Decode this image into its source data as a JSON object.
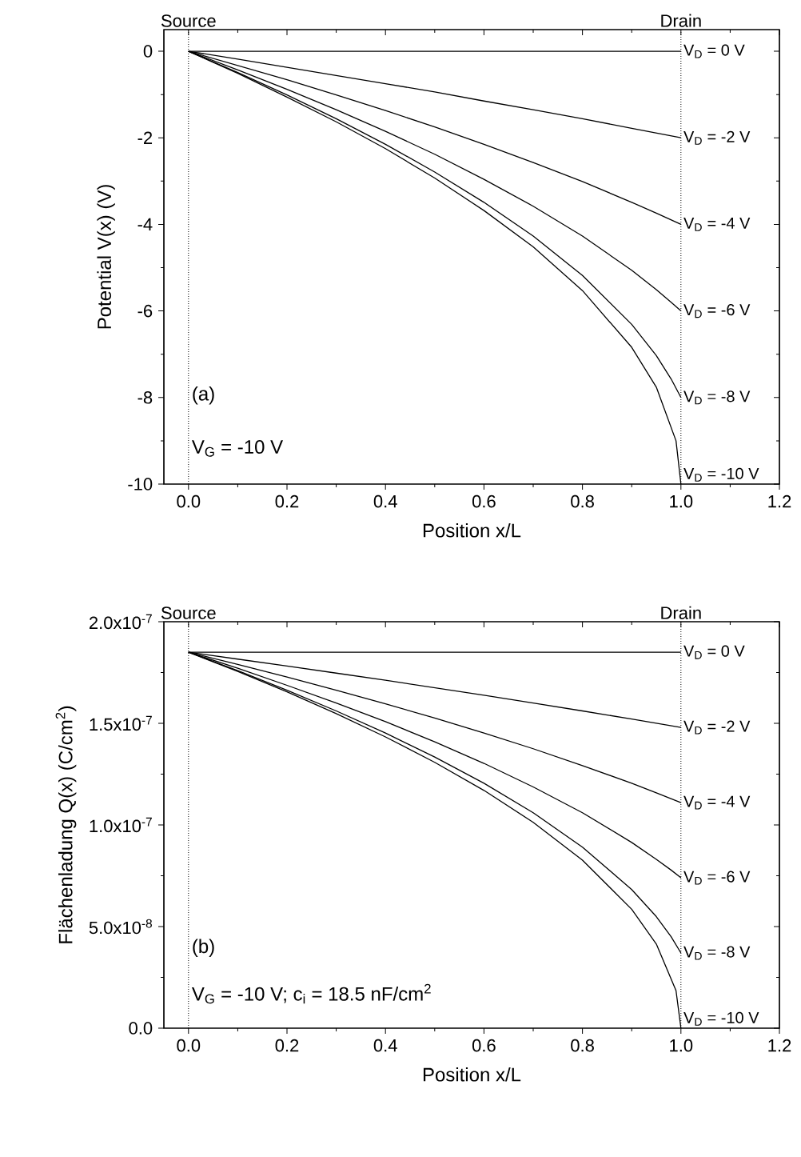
{
  "chart_data": [
    {
      "type": "line",
      "xlabel": "Position x/L",
      "ylabel": "Potential V(x) (V)",
      "xlim": [
        -0.05,
        1.2
      ],
      "ylim": [
        -10,
        0.5
      ],
      "xticks": [
        {
          "value": 0,
          "label": "0.0"
        },
        {
          "value": 0.2,
          "label": "0.2"
        },
        {
          "value": 0.4,
          "label": "0.4"
        },
        {
          "value": 0.6,
          "label": "0.6"
        },
        {
          "value": 0.8,
          "label": "0.8"
        },
        {
          "value": 1,
          "label": "1.0"
        },
        {
          "value": 1.2,
          "label": "1.2"
        }
      ],
      "yticks": [
        -10,
        -8,
        -6,
        -4,
        -2,
        0
      ],
      "grid": false,
      "legend": "right",
      "line_style": "solid",
      "marker": "none",
      "ref_lines": [
        {
          "axis": "x",
          "value": 0,
          "label": "Source",
          "line_style": "dotted",
          "color": "#000000"
        },
        {
          "axis": "x",
          "value": 1,
          "label": "Drain",
          "line_style": "dotted",
          "color": "#000000"
        }
      ],
      "annotations": [
        "(a)",
        "V$_{G}$ = -10 V"
      ],
      "series": [
        {
          "name": "V$_{D}$ = 0 V",
          "color": "#000000",
          "x": [
            0,
            1
          ],
          "values": [
            0,
            0
          ]
        },
        {
          "name": "V$_{D}$ = -2 V",
          "color": "#000000",
          "x": [
            0,
            0.1,
            0.2,
            0.3,
            0.4,
            0.5,
            0.6,
            0.7,
            0.8,
            0.9,
            1
          ],
          "values": [
            0,
            -0.18,
            -0.37,
            -0.56,
            -0.75,
            -0.94,
            -1.15,
            -1.35,
            -1.56,
            -1.78,
            -2
          ]
        },
        {
          "name": "V$_{D}$ = -4 V",
          "color": "#000000",
          "x": [
            0,
            0.1,
            0.2,
            0.3,
            0.4,
            0.5,
            0.6,
            0.7,
            0.8,
            0.9,
            0.95,
            1
          ],
          "values": [
            0,
            -0.33,
            -0.66,
            -1.01,
            -1.37,
            -1.75,
            -2.15,
            -2.57,
            -3.01,
            -3.49,
            -3.74,
            -4
          ]
        },
        {
          "name": "V$_{D}$ = -6 V",
          "color": "#000000",
          "x": [
            0,
            0.1,
            0.2,
            0.3,
            0.4,
            0.5,
            0.6,
            0.7,
            0.8,
            0.9,
            0.95,
            0.98,
            1
          ],
          "values": [
            0,
            -0.43,
            -0.88,
            -1.35,
            -1.85,
            -2.38,
            -2.96,
            -3.58,
            -4.27,
            -5.06,
            -5.51,
            -5.8,
            -6
          ]
        },
        {
          "name": "V$_{D}$ = -8 V",
          "color": "#000000",
          "x": [
            0,
            0.1,
            0.2,
            0.3,
            0.4,
            0.5,
            0.6,
            0.7,
            0.8,
            0.9,
            0.95,
            0.98,
            1
          ],
          "values": [
            0,
            -0.49,
            -1.01,
            -1.56,
            -2.15,
            -2.79,
            -3.49,
            -4.27,
            -5.18,
            -6.31,
            -7.03,
            -7.57,
            -8
          ]
        },
        {
          "name": "V$_{D}$ = -10 V",
          "color": "#000000",
          "x": [
            0,
            0.1,
            0.2,
            0.3,
            0.4,
            0.5,
            0.6,
            0.7,
            0.8,
            0.9,
            0.95,
            0.99,
            1
          ],
          "values": [
            0,
            -0.51,
            -1.06,
            -1.63,
            -2.25,
            -2.93,
            -3.68,
            -4.52,
            -5.53,
            -6.84,
            -7.76,
            -9,
            -10
          ]
        }
      ]
    },
    {
      "type": "line",
      "xlabel": "Position x/L",
      "ylabel": "Flächenladung Q(x) (C/cm$^{2}$)",
      "xlim": [
        -0.05,
        1.2
      ],
      "ylim": [
        0,
        2e-07
      ],
      "xticks": [
        {
          "value": 0,
          "label": "0.0"
        },
        {
          "value": 0.2,
          "label": "0.2"
        },
        {
          "value": 0.4,
          "label": "0.4"
        },
        {
          "value": 0.6,
          "label": "0.6"
        },
        {
          "value": 0.8,
          "label": "0.8"
        },
        {
          "value": 1,
          "label": "1.0"
        },
        {
          "value": 1.2,
          "label": "1.2"
        }
      ],
      "yticks": [
        {
          "value": 0,
          "label": "0.0"
        },
        {
          "value": 5e-08,
          "label": "5.0x10$^{-8}$"
        },
        {
          "value": 1e-07,
          "label": "1.0x10$^{-7}$"
        },
        {
          "value": 1.5e-07,
          "label": "1.5x10$^{-7}$"
        },
        {
          "value": 2e-07,
          "label": "2.0x10$^{-7}$"
        }
      ],
      "grid": false,
      "legend": "right",
      "line_style": "solid",
      "marker": "none",
      "ref_lines": [
        {
          "axis": "x",
          "value": 0,
          "label": "Source",
          "line_style": "dotted",
          "color": "#000000"
        },
        {
          "axis": "x",
          "value": 1,
          "label": "Drain",
          "line_style": "dotted",
          "color": "#000000"
        }
      ],
      "annotations": [
        "(b)",
        "V$_{G}$ = -10 V; c$_{i}$ = 18.5 nF/cm$^{2}$"
      ],
      "series": [
        {
          "name": "V$_{D}$ = 0 V",
          "color": "#000000",
          "x": [
            0,
            1
          ],
          "values": [
            1.85e-07,
            1.85e-07
          ]
        },
        {
          "name": "V$_{D}$ = -2 V",
          "color": "#000000",
          "x": [
            0,
            0.1,
            0.2,
            0.3,
            0.4,
            0.5,
            0.6,
            0.7,
            0.8,
            0.9,
            1
          ],
          "values": [
            1.85e-07,
            1.816e-07,
            1.782e-07,
            1.747e-07,
            1.712e-07,
            1.675e-07,
            1.638e-07,
            1.6e-07,
            1.561e-07,
            1.521e-07,
            1.48e-07
          ]
        },
        {
          "name": "V$_{D}$ = -4 V",
          "color": "#000000",
          "x": [
            0,
            0.1,
            0.2,
            0.3,
            0.4,
            0.5,
            0.6,
            0.7,
            0.8,
            0.9,
            0.95,
            1
          ],
          "values": [
            1.85e-07,
            1.79e-07,
            1.728e-07,
            1.663e-07,
            1.596e-07,
            1.526e-07,
            1.452e-07,
            1.375e-07,
            1.292e-07,
            1.205e-07,
            1.158e-07,
            1.11e-07
          ]
        },
        {
          "name": "V$_{D}$ = -6 V",
          "color": "#000000",
          "x": [
            0,
            0.1,
            0.2,
            0.3,
            0.4,
            0.5,
            0.6,
            0.7,
            0.8,
            0.9,
            0.95,
            0.98,
            1
          ],
          "values": [
            1.85e-07,
            1.771e-07,
            1.687e-07,
            1.6e-07,
            1.508e-07,
            1.409e-07,
            1.303e-07,
            1.187e-07,
            1.06e-07,
            9.14e-08,
            8.31e-08,
            7.78e-08,
            7.4e-08
          ]
        },
        {
          "name": "V$_{D}$ = -8 V",
          "color": "#000000",
          "x": [
            0,
            0.1,
            0.2,
            0.3,
            0.4,
            0.5,
            0.6,
            0.7,
            0.8,
            0.9,
            0.95,
            0.98,
            1
          ],
          "values": [
            1.85e-07,
            1.759e-07,
            1.663e-07,
            1.561e-07,
            1.452e-07,
            1.334e-07,
            1.205e-07,
            1.06e-07,
            8.91e-08,
            6.82e-08,
            5.49e-08,
            4.5e-08,
            3.7e-08
          ]
        },
        {
          "name": "V$_{D}$ = -10 V",
          "color": "#000000",
          "x": [
            0,
            0.1,
            0.2,
            0.3,
            0.4,
            0.5,
            0.6,
            0.7,
            0.8,
            0.9,
            0.95,
            0.99,
            1
          ],
          "values": [
            1.85e-07,
            1.755e-07,
            1.655e-07,
            1.548e-07,
            1.433e-07,
            1.308e-07,
            1.17e-07,
            1.013e-07,
            8.27e-08,
            5.85e-08,
            4.14e-08,
            1.85e-08,
            0
          ]
        }
      ]
    }
  ]
}
